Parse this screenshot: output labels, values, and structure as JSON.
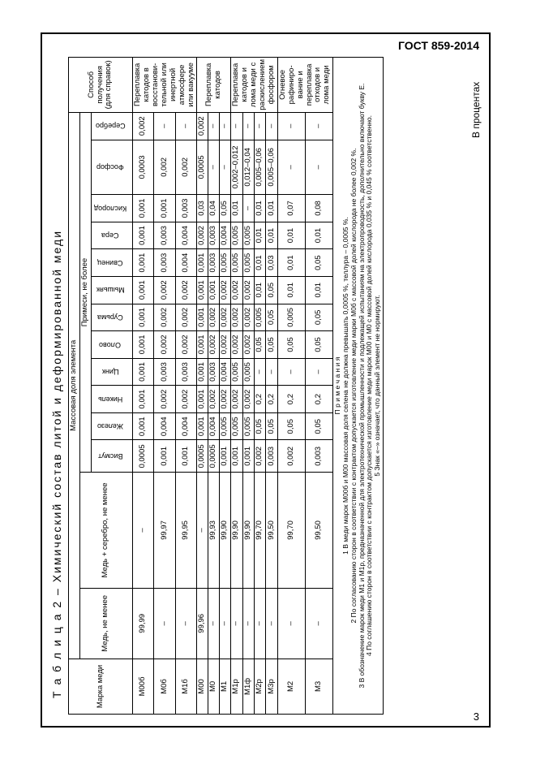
{
  "doc_id": "ГОСТ 859-2014",
  "page_num": "3",
  "table_caption": "Т а б л и ц а   2  – Химический состав литой и деформированной меди",
  "percent_caption": "В процентах",
  "header": {
    "marka": "Марка меди",
    "mass_frac": "Массовая доля элемента",
    "method": "Способ получения (для справок)",
    "cu": "Медь, не менее",
    "cuag": "Медь + серебро, не менее",
    "impur": "Примеси, не более",
    "cols": [
      "Висмут",
      "Железо",
      "Никель",
      "Цинк",
      "Олово",
      "Сурьма",
      "Мышьяк",
      "Свинец",
      "Сера",
      "Кислород",
      "Фосфор",
      "Серебро"
    ]
  },
  "groups": [
    {
      "method": "Переплавка катодов в восстанови­тельной или инертной атмосфере или вакууме",
      "rows": [
        {
          "m": "М00б",
          "cu": "99,99",
          "cuag": "–",
          "v": [
            "0,0005",
            "0,001",
            "0,001",
            "0,001",
            "0,001",
            "0,001",
            "0,001",
            "0,001",
            "0,001",
            "0,001",
            "0,0003",
            "0,002"
          ]
        },
        {
          "m": "М0б",
          "cu": "–",
          "cuag": "99,97",
          "v": [
            "0,001",
            "0,004",
            "0,002",
            "0,003",
            "0,002",
            "0,002",
            "0,002",
            "0,003",
            "0,003",
            "0,001",
            "0,002",
            "–"
          ]
        },
        {
          "m": "М1б",
          "cu": "–",
          "cuag": "99,95",
          "v": [
            "0,001",
            "0,004",
            "0,002",
            "0,003",
            "0,002",
            "0,002",
            "0,002",
            "0,004",
            "0,004",
            "0,003",
            "0,002",
            "–"
          ]
        }
      ]
    },
    {
      "method": "Переплавка катодов",
      "rows": [
        {
          "m": "М00",
          "cu": "99,96",
          "cuag": "–",
          "v": [
            "0,0005",
            "0,001",
            "0,001",
            "0,001",
            "0,001",
            "0,001",
            "0,001",
            "0,001",
            "0,002",
            "0,03",
            "0,0005",
            "0,002"
          ]
        },
        {
          "m": "М0",
          "cu": "–",
          "cuag": "99,93",
          "v": [
            "0,0005",
            "0,004",
            "0,002",
            "0,003",
            "0,002",
            "0,002",
            "0,001",
            "0,003",
            "0,003",
            "0,04",
            "–",
            "–"
          ]
        },
        {
          "m": "М1",
          "cu": "–",
          "cuag": "99,90",
          "v": [
            "0,001",
            "0,005",
            "0,002",
            "0,004",
            "0,002",
            "0,002",
            "0,002",
            "0,005",
            "0,004",
            "0,05",
            "–",
            "–"
          ]
        }
      ]
    },
    {
      "method": "Переплавка катодов и лома меди с раскислением фосфором",
      "rows": [
        {
          "m": "М1р",
          "cu": "–",
          "cuag": "99,90",
          "v": [
            "0,001",
            "0,005",
            "0,002",
            "0,005",
            "0,002",
            "0,002",
            "0,002",
            "0,005",
            "0,005",
            "0,01",
            "0,002–0,012",
            "–"
          ]
        },
        {
          "m": "М1ф",
          "cu": "–",
          "cuag": "99,90",
          "v": [
            "0,001",
            "0,005",
            "0,002",
            "0,005",
            "0,002",
            "0,002",
            "0,002",
            "0,005",
            "0,005",
            "–",
            "0,012–0,04",
            "–"
          ]
        },
        {
          "m": "М2р",
          "cu": "–",
          "cuag": "99,70",
          "v": [
            "0,002",
            "0,05",
            "0,2",
            "–",
            "0,05",
            "0,005",
            "0,01",
            "0,01",
            "0,01",
            "0,01",
            "0,005–0,06",
            "–"
          ]
        },
        {
          "m": "М3р",
          "cu": "–",
          "cuag": "99,50",
          "v": [
            "0,003",
            "0,05",
            "0,2",
            "–",
            "0,05",
            "0,05",
            "0,05",
            "0,03",
            "0,01",
            "0,01",
            "0,005–0,06",
            "–"
          ]
        }
      ]
    },
    {
      "method": "Огневое рафиниро­вание и переплавка отходов и лома меди",
      "rows": [
        {
          "m": "М2",
          "cu": "–",
          "cuag": "99,70",
          "v": [
            "0,002",
            "0,05",
            "0,2",
            "–",
            "0,05",
            "0,005",
            "0,01",
            "0,01",
            "0,01",
            "0,07",
            "–",
            "–"
          ]
        },
        {
          "m": "М3",
          "cu": "–",
          "cuag": "99,50",
          "v": [
            "0,003",
            "0,05",
            "0,2",
            "–",
            "0,05",
            "0,05",
            "0,01",
            "0,05",
            "0,01",
            "0,08",
            "–",
            "–"
          ]
        }
      ]
    }
  ],
  "notes_title": "П р и м е ч а н и я",
  "notes": [
    "1 В меди марок М00б и М00 массовая доля селена не должна превышать 0,0005 %, теллура – 0,0005 %.",
    "2 По согласованию сторон в соответствии с контрактом допускается изготовление меди марки М0б с массовой долей кислорода не более 0,002 %.",
    "3 В обозначение марок меди М1 и М1р, предназначенной для электротехнической промышленности и подлежащей испытаниям на электропроводность, дополнительно включают букву Е.",
    "4 По соглашению сторон в соответствии с контрактом допускается изготовление меди марок М00 и М0 с массовой долей кислорода 0,035 % и 0,045 % соответственно.",
    "5 Знак «–» означает, что данный элемент не нормируют."
  ]
}
